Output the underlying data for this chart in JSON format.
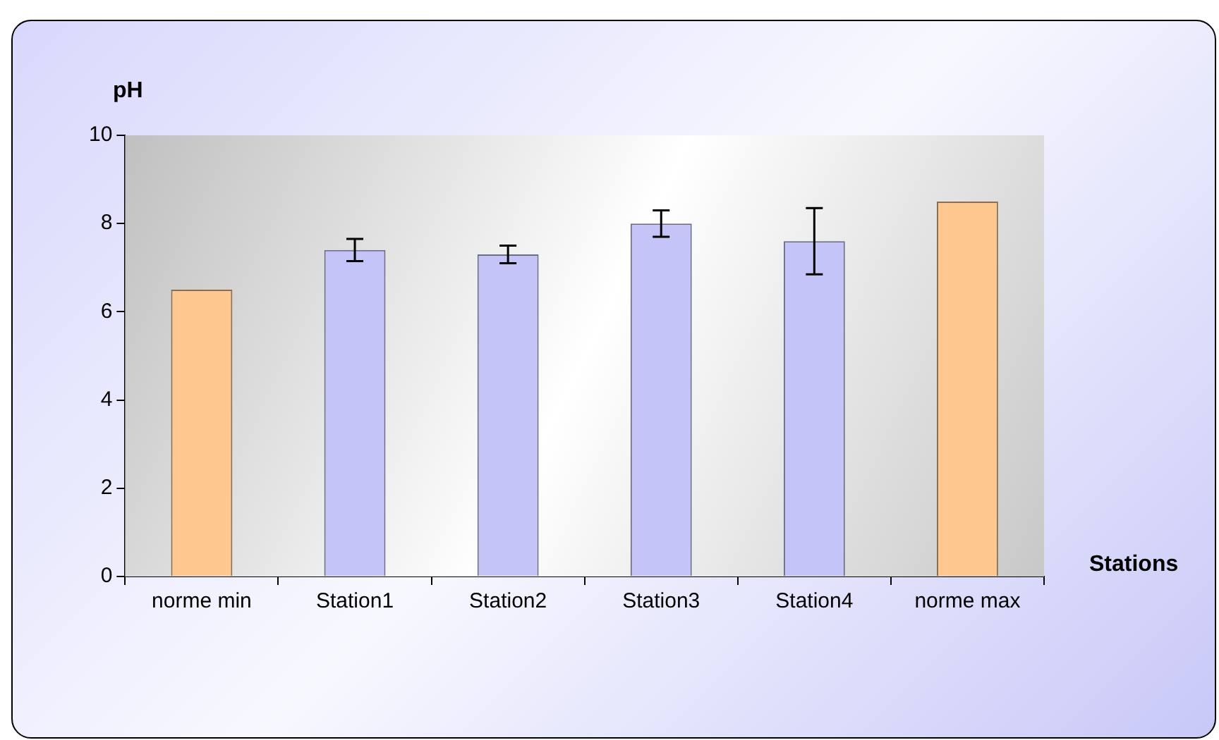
{
  "chart_data": {
    "type": "bar",
    "xlabel": "Stations",
    "ylabel": "pH",
    "categories": [
      "norme min",
      "Station1",
      "Station2",
      "Station3",
      "Station4",
      "norme max"
    ],
    "values": [
      6.5,
      7.4,
      7.3,
      8.0,
      7.6,
      8.5
    ],
    "errors": [
      null,
      0.25,
      0.2,
      0.3,
      0.75,
      null
    ],
    "colors": [
      "#ffc890",
      "#c4c4f8",
      "#c4c4f8",
      "#c4c4f8",
      "#c4c4f8",
      "#ffc890"
    ],
    "ylim": [
      0,
      10
    ],
    "yticks": [
      0,
      2,
      4,
      6,
      8,
      10
    ],
    "grid": false,
    "legend": false
  }
}
